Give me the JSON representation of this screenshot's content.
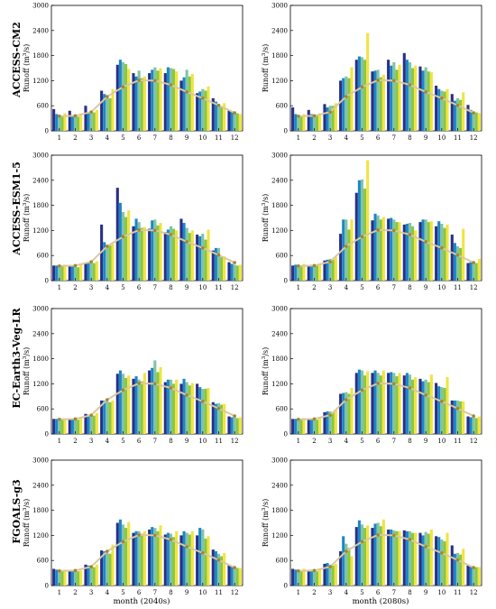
{
  "figure": {
    "row_labels": [
      "ACCESS-CM2",
      "ACCESS-ESM1-5",
      "EC-Earth3-Veg-LR",
      "FGOALS-g3"
    ],
    "xlabels": [
      "month (2040s)",
      "month (2080s)"
    ],
    "ylabel_main": "Runoff (m",
    "ylabel_sup": "3",
    "ylabel_tail": "/s)"
  },
  "colors": {
    "bars": [
      "#2a2f86",
      "#1e86c6",
      "#7fc4a6",
      "#8cc63f",
      "#f0e442"
    ],
    "baseline_line": "#d8c9a3",
    "baseline_marker": "#a9822f"
  },
  "chart_data": [
    {
      "type": "bar",
      "row": 0,
      "col": 0,
      "categories": [
        "1",
        "2",
        "3",
        "4",
        "5",
        "6",
        "7",
        "8",
        "9",
        "10",
        "11",
        "12"
      ],
      "yticks": [
        "0",
        "600",
        "1200",
        "1800",
        "2400",
        "3000"
      ],
      "ylim": [
        0,
        3000
      ],
      "series": [
        {
          "values": [
            520,
            480,
            600,
            960,
            1580,
            1380,
            1380,
            1380,
            1200,
            900,
            780,
            500
          ]
        },
        {
          "values": [
            400,
            380,
            420,
            880,
            1700,
            1300,
            1460,
            1520,
            1280,
            940,
            700,
            460
          ]
        },
        {
          "values": [
            380,
            360,
            480,
            840,
            1640,
            1440,
            1520,
            1500,
            1460,
            1000,
            620,
            440
          ]
        },
        {
          "values": [
            360,
            340,
            440,
            780,
            1600,
            1260,
            1440,
            1480,
            1300,
            960,
            580,
            420
          ]
        },
        {
          "values": [
            420,
            420,
            500,
            1000,
            1480,
            1300,
            1500,
            1420,
            1360,
            1060,
            660,
            400
          ]
        }
      ],
      "baseline": [
        350,
        360,
        450,
        820,
        1050,
        1210,
        1200,
        1100,
        930,
        780,
        610,
        430
      ]
    },
    {
      "type": "bar",
      "row": 0,
      "col": 1,
      "categories": [
        "1",
        "2",
        "3",
        "4",
        "5",
        "6",
        "7",
        "8",
        "9",
        "10",
        "11",
        "12"
      ],
      "yticks": [
        "0",
        "600",
        "1200",
        "1800",
        "2400",
        "3000"
      ],
      "ylim": [
        0,
        3000
      ],
      "series": [
        {
          "values": [
            560,
            500,
            640,
            1200,
            1700,
            1420,
            1700,
            1860,
            1540,
            1080,
            880,
            620
          ]
        },
        {
          "values": [
            400,
            400,
            560,
            1260,
            1780,
            1440,
            1560,
            1700,
            1440,
            1000,
            720,
            500
          ]
        },
        {
          "values": [
            380,
            360,
            600,
            1300,
            1760,
            1460,
            1640,
            1640,
            1520,
            960,
            780,
            460
          ]
        },
        {
          "values": [
            360,
            380,
            600,
            1260,
            1700,
            1280,
            1460,
            1500,
            1420,
            940,
            740,
            440
          ]
        },
        {
          "values": [
            400,
            420,
            660,
            1520,
            2340,
            1340,
            1580,
            1560,
            1400,
            1000,
            920,
            420
          ]
        }
      ],
      "baseline": [
        350,
        360,
        450,
        820,
        1050,
        1210,
        1200,
        1100,
        930,
        780,
        610,
        430
      ]
    },
    {
      "type": "bar",
      "row": 1,
      "col": 0,
      "categories": [
        "1",
        "2",
        "3",
        "4",
        "5",
        "6",
        "7",
        "8",
        "9",
        "10",
        "11",
        "12"
      ],
      "yticks": [
        "0",
        "600",
        "1200",
        "1800",
        "2400",
        "3000"
      ],
      "ylim": [
        0,
        3000
      ],
      "series": [
        {
          "values": [
            360,
            340,
            400,
            1340,
            2220,
            1300,
            1240,
            1160,
            1480,
            1100,
            720,
            440
          ]
        },
        {
          "values": [
            360,
            360,
            420,
            920,
            1860,
            1480,
            1440,
            1220,
            1380,
            1060,
            780,
            400
          ]
        },
        {
          "values": [
            360,
            380,
            480,
            860,
            1640,
            1400,
            1460,
            1300,
            1260,
            1120,
            780,
            380
          ]
        },
        {
          "values": [
            340,
            320,
            420,
            840,
            1520,
            1260,
            1320,
            1240,
            1140,
            980,
            560,
            360
          ]
        },
        {
          "values": [
            380,
            380,
            460,
            880,
            1680,
            1280,
            1380,
            1200,
            1200,
            1220,
            580,
            380
          ]
        }
      ],
      "baseline": [
        350,
        360,
        450,
        820,
        1050,
        1210,
        1200,
        1100,
        930,
        780,
        610,
        430
      ]
    },
    {
      "type": "bar",
      "row": 1,
      "col": 1,
      "categories": [
        "1",
        "2",
        "3",
        "4",
        "5",
        "6",
        "7",
        "8",
        "9",
        "10",
        "11",
        "12"
      ],
      "yticks": [
        "0",
        "600",
        "1200",
        "1800",
        "2400",
        "3000"
      ],
      "ylim": [
        0,
        3000
      ],
      "series": [
        {
          "values": [
            360,
            360,
            480,
            1120,
            2100,
            1440,
            1480,
            1340,
            1400,
            1300,
            1100,
            420
          ]
        },
        {
          "values": [
            380,
            380,
            500,
            1460,
            2400,
            1600,
            1500,
            1360,
            1460,
            1420,
            900,
            440
          ]
        },
        {
          "values": [
            380,
            360,
            520,
            1460,
            2420,
            1560,
            1460,
            1380,
            1460,
            1360,
            820,
            440
          ]
        },
        {
          "values": [
            360,
            360,
            500,
            1220,
            2200,
            1460,
            1400,
            1300,
            1400,
            1260,
            780,
            420
          ]
        },
        {
          "values": [
            400,
            380,
            560,
            1460,
            2880,
            1520,
            1400,
            1200,
            1420,
            1340,
            1240,
            520
          ]
        }
      ],
      "baseline": [
        350,
        360,
        450,
        820,
        1050,
        1210,
        1200,
        1100,
        930,
        780,
        610,
        430
      ]
    },
    {
      "type": "bar",
      "row": 2,
      "col": 0,
      "categories": [
        "1",
        "2",
        "3",
        "4",
        "5",
        "6",
        "7",
        "8",
        "9",
        "10",
        "11",
        "12"
      ],
      "yticks": [
        "0",
        "600",
        "1200",
        "1800",
        "2400",
        "3000"
      ],
      "ylim": [
        0,
        3000
      ],
      "series": [
        {
          "values": [
            360,
            360,
            480,
            800,
            1440,
            1320,
            1520,
            1240,
            1200,
            1200,
            760,
            420
          ]
        },
        {
          "values": [
            360,
            360,
            460,
            800,
            1520,
            1380,
            1580,
            1300,
            1320,
            1120,
            720,
            400
          ]
        },
        {
          "values": [
            360,
            360,
            440,
            780,
            1440,
            1300,
            1760,
            1300,
            1240,
            1080,
            740,
            400
          ]
        },
        {
          "values": [
            340,
            340,
            440,
            760,
            1340,
            1260,
            1480,
            1200,
            1160,
            1080,
            700,
            380
          ]
        },
        {
          "values": [
            360,
            380,
            500,
            800,
            1400,
            1460,
            1600,
            1300,
            1220,
            1100,
            720,
            400
          ]
        }
      ],
      "baseline": [
        350,
        360,
        450,
        820,
        1050,
        1210,
        1200,
        1100,
        930,
        780,
        610,
        430
      ]
    },
    {
      "type": "bar",
      "row": 2,
      "col": 1,
      "categories": [
        "1",
        "2",
        "3",
        "4",
        "5",
        "6",
        "7",
        "8",
        "9",
        "10",
        "11",
        "12"
      ],
      "yticks": [
        "0",
        "600",
        "1200",
        "1800",
        "2400",
        "3000"
      ],
      "ylim": [
        0,
        3000
      ],
      "series": [
        {
          "values": [
            360,
            340,
            520,
            960,
            1460,
            1460,
            1460,
            1400,
            1320,
            1220,
            800,
            420
          ]
        },
        {
          "values": [
            360,
            360,
            540,
            980,
            1540,
            1520,
            1480,
            1460,
            1260,
            1140,
            800,
            400
          ]
        },
        {
          "values": [
            360,
            360,
            540,
            1000,
            1520,
            1460,
            1460,
            1420,
            1300,
            1120,
            800,
            400
          ]
        },
        {
          "values": [
            340,
            340,
            520,
            960,
            1400,
            1400,
            1380,
            1300,
            1240,
            1100,
            780,
            380
          ]
        },
        {
          "values": [
            380,
            380,
            580,
            1100,
            1500,
            1520,
            1460,
            1360,
            1420,
            1360,
            780,
            420
          ]
        }
      ],
      "baseline": [
        350,
        360,
        450,
        820,
        1050,
        1210,
        1200,
        1100,
        930,
        780,
        610,
        430
      ]
    },
    {
      "type": "bar",
      "row": 3,
      "col": 0,
      "categories": [
        "1",
        "2",
        "3",
        "4",
        "5",
        "6",
        "7",
        "8",
        "9",
        "10",
        "11",
        "12"
      ],
      "yticks": [
        "0",
        "600",
        "1200",
        "1800",
        "2400",
        "3000"
      ],
      "ylim": [
        0,
        3000
      ],
      "series": [
        {
          "values": [
            400,
            360,
            500,
            840,
            1500,
            1260,
            1340,
            1220,
            1200,
            1200,
            860,
            500
          ]
        },
        {
          "values": [
            380,
            360,
            480,
            820,
            1580,
            1300,
            1400,
            1260,
            1300,
            1380,
            820,
            460
          ]
        },
        {
          "values": [
            380,
            360,
            460,
            780,
            1460,
            1300,
            1380,
            1240,
            1260,
            1340,
            760,
            440
          ]
        },
        {
          "values": [
            360,
            340,
            440,
            760,
            1380,
            1240,
            1300,
            1160,
            1220,
            1120,
            700,
            420
          ]
        },
        {
          "values": [
            380,
            360,
            500,
            980,
            1520,
            1300,
            1440,
            1300,
            1300,
            1180,
            780,
            420
          ]
        }
      ],
      "baseline": [
        350,
        360,
        450,
        820,
        1050,
        1210,
        1200,
        1100,
        930,
        780,
        610,
        430
      ]
    },
    {
      "type": "bar",
      "row": 3,
      "col": 1,
      "categories": [
        "1",
        "2",
        "3",
        "4",
        "5",
        "6",
        "7",
        "8",
        "9",
        "10",
        "11",
        "12"
      ],
      "yticks": [
        "0",
        "600",
        "1200",
        "1800",
        "2400",
        "3000"
      ],
      "ylim": [
        0,
        3000
      ],
      "series": [
        {
          "values": [
            400,
            360,
            520,
            820,
            1400,
            1380,
            1340,
            1320,
            1260,
            1180,
            960,
            480
          ]
        },
        {
          "values": [
            380,
            380,
            540,
            1180,
            1560,
            1480,
            1340,
            1300,
            1200,
            1160,
            760,
            460
          ]
        },
        {
          "values": [
            380,
            360,
            500,
            1000,
            1460,
            1500,
            1320,
            1300,
            1280,
            1100,
            780,
            460
          ]
        },
        {
          "values": [
            360,
            340,
            480,
            900,
            1380,
            1420,
            1300,
            1260,
            1240,
            1060,
            740,
            440
          ]
        },
        {
          "values": [
            400,
            380,
            520,
            700,
            1440,
            1580,
            1300,
            1260,
            1340,
            1260,
            880,
            440
          ]
        }
      ],
      "baseline": [
        350,
        360,
        450,
        820,
        1050,
        1210,
        1200,
        1100,
        930,
        780,
        610,
        430
      ]
    }
  ]
}
